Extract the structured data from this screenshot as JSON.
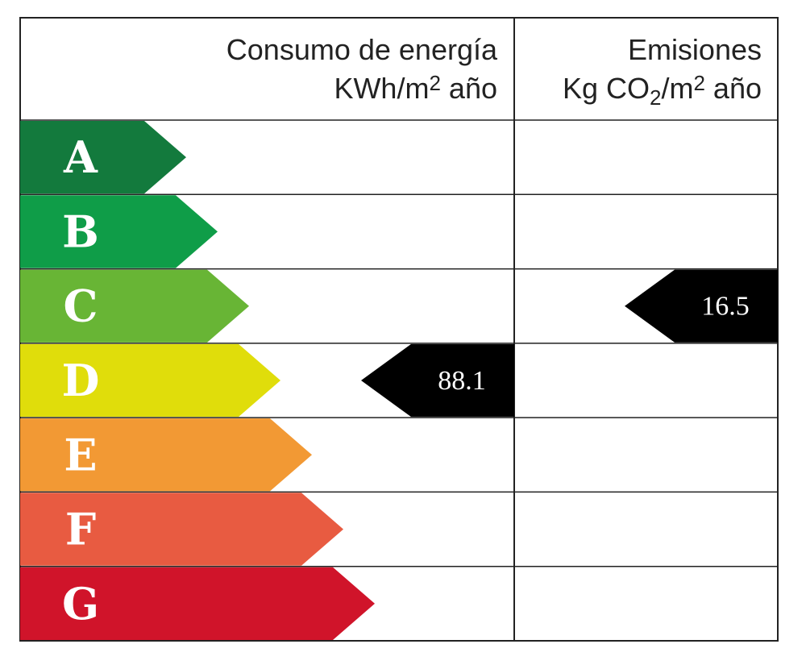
{
  "header": {
    "consumption": {
      "title": "Consumo de energía",
      "unit": [
        "KWh/m",
        "2",
        " año"
      ]
    },
    "emissions": {
      "title": "Emisiones",
      "unit": [
        "Kg CO",
        "2",
        "/m",
        "2",
        " año"
      ]
    }
  },
  "classes": [
    {
      "letter": "A",
      "color": "#137a3d"
    },
    {
      "letter": "B",
      "color": "#0f9d48"
    },
    {
      "letter": "C",
      "color": "#68b535"
    },
    {
      "letter": "D",
      "color": "#e0dd0b"
    },
    {
      "letter": "E",
      "color": "#f29934"
    },
    {
      "letter": "F",
      "color": "#e85b41"
    },
    {
      "letter": "G",
      "color": "#d0142a"
    }
  ],
  "consumption": {
    "class": "D",
    "value": 88.1
  },
  "emissions": {
    "class": "C",
    "value": 16.5
  }
}
